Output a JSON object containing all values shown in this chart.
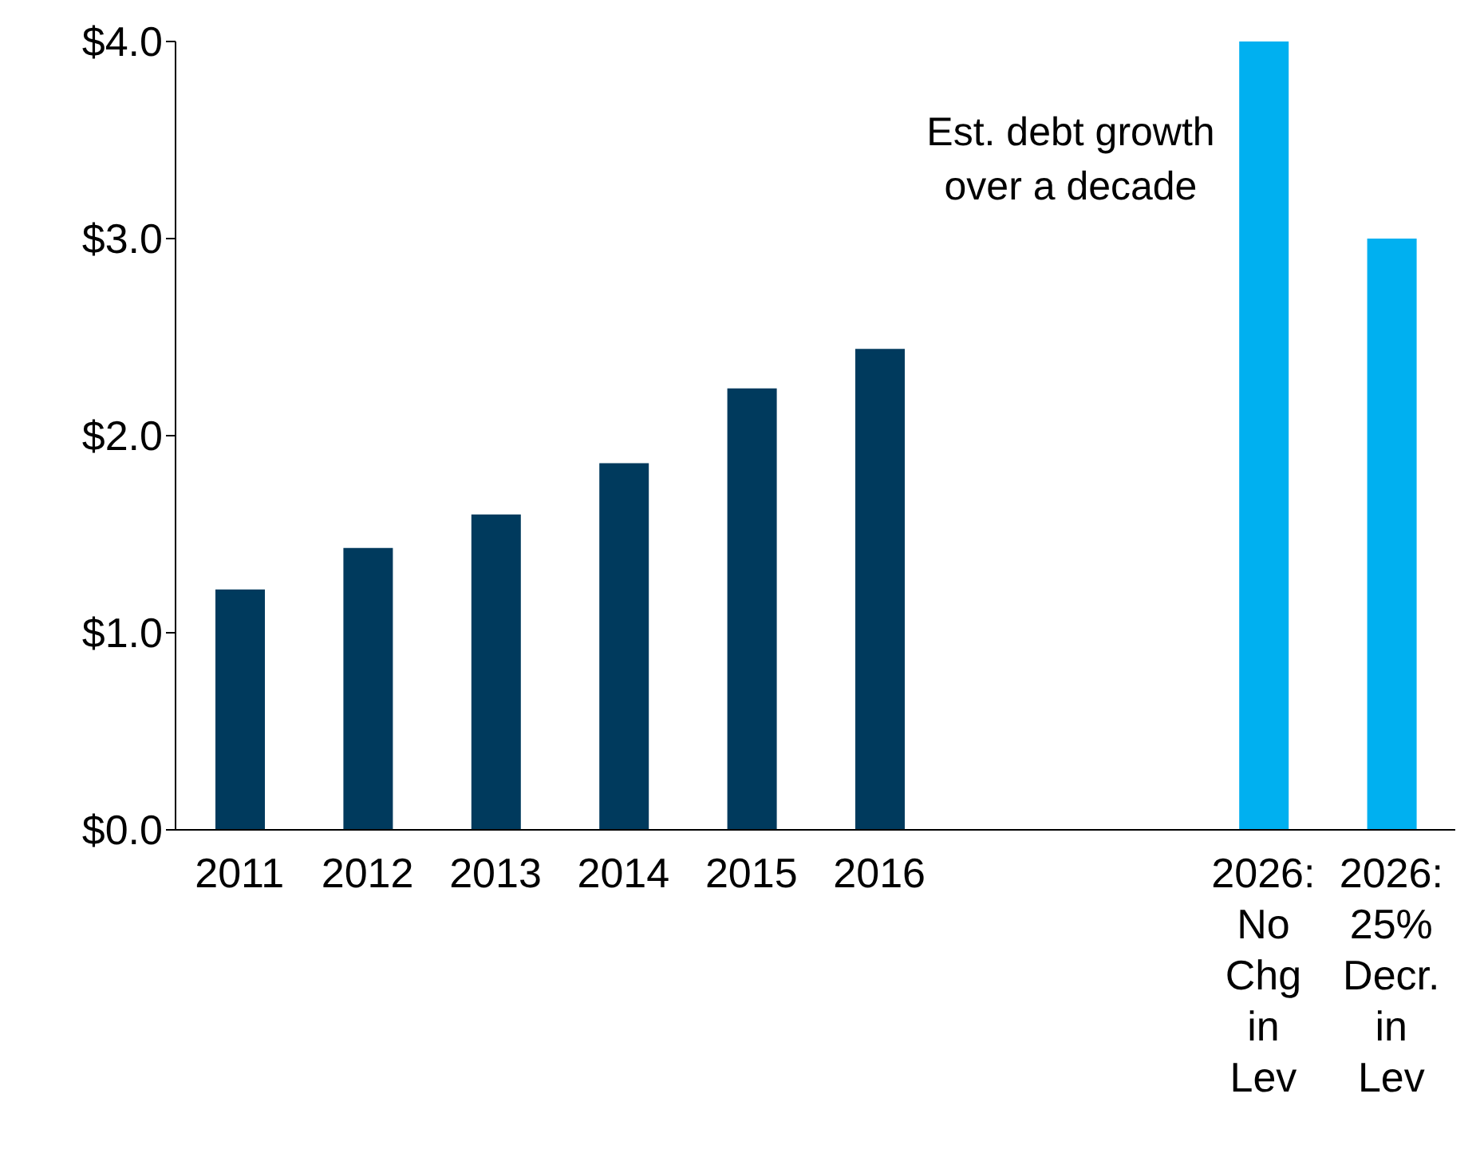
{
  "chart_data": {
    "type": "bar",
    "categories": [
      "2011",
      "2012",
      "2013",
      "2014",
      "2015",
      "2016",
      null,
      null,
      "2026: No Chg in Lev",
      "2026: 25% Decr. in Lev"
    ],
    "values": [
      1.22,
      1.43,
      1.6,
      1.86,
      2.24,
      2.44,
      null,
      null,
      4.0,
      3.0
    ],
    "colors": [
      "#003a5d",
      "#003a5d",
      "#003a5d",
      "#003a5d",
      "#003a5d",
      "#003a5d",
      "#003a5d",
      "#003a5d",
      "#00b0f0",
      "#00b0f0"
    ],
    "ylim": [
      0,
      4
    ],
    "yticks": [
      {
        "value": 0,
        "label": "$0.0"
      },
      {
        "value": 1,
        "label": "$1.0"
      },
      {
        "value": 2,
        "label": "$2.0"
      },
      {
        "value": 3,
        "label": "$3.0"
      },
      {
        "value": 4,
        "label": "$4.0"
      }
    ],
    "annotations": [
      "Est. debt growth over a decade"
    ],
    "grid": false,
    "legend": false
  }
}
